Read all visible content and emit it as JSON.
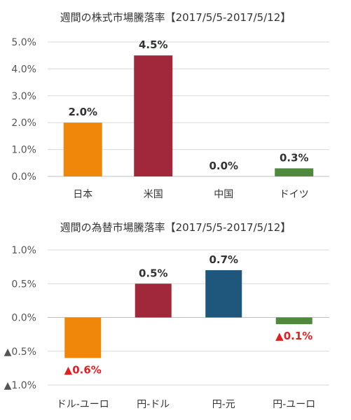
{
  "chart_data": [
    {
      "type": "bar",
      "title": "週間の株式市場騰落率【2017/5/5-2017/5/12】",
      "categories": [
        "日本",
        "米国",
        "中国",
        "ドイツ"
      ],
      "values": [
        2.0,
        4.5,
        0.0,
        0.3
      ],
      "data_labels": [
        "2.0%",
        "4.5%",
        "0.0%",
        "0.3%"
      ],
      "label_colors": [
        "#333333",
        "#333333",
        "#333333",
        "#333333"
      ],
      "colors": [
        "#f0870a",
        "#a0283a",
        "#1f577c",
        "#4f8a3c"
      ],
      "ylim": [
        0,
        5
      ],
      "yticks": [
        5.0,
        4.0,
        3.0,
        2.0,
        1.0,
        0.0
      ],
      "ytick_labels": [
        "5.0%",
        "4.0%",
        "3.0%",
        "2.0%",
        "1.0%",
        "0.0%"
      ],
      "ytick_colors": [
        "#555555",
        "#555555",
        "#555555",
        "#555555",
        "#555555",
        "#555555"
      ],
      "grid": true,
      "xlabel": "",
      "ylabel": ""
    },
    {
      "type": "bar",
      "title": "週間の為替市場騰落率【2017/5/5-2017/5/12】",
      "categories": [
        "ドル-ユーロ",
        "円-ドル",
        "円-元",
        "円-ユーロ"
      ],
      "values": [
        -0.6,
        0.5,
        0.7,
        -0.1
      ],
      "data_labels": [
        "▲0.6%",
        "0.5%",
        "0.7%",
        "▲0.1%"
      ],
      "label_colors": [
        "#e02020",
        "#333333",
        "#333333",
        "#e02020"
      ],
      "colors": [
        "#f0870a",
        "#a0283a",
        "#1f577c",
        "#4f8a3c"
      ],
      "ylim": [
        -1.0,
        1.0
      ],
      "yticks": [
        1.0,
        0.5,
        0.0,
        -0.5,
        -1.0
      ],
      "ytick_labels": [
        "1.0%",
        "0.5%",
        "0.0%",
        "▲0.5%",
        "▲1.0%"
      ],
      "ytick_colors": [
        "#555555",
        "#555555",
        "#555555",
        "#e02020",
        "#e02020"
      ],
      "grid": true,
      "xlabel": "",
      "ylabel": ""
    }
  ]
}
